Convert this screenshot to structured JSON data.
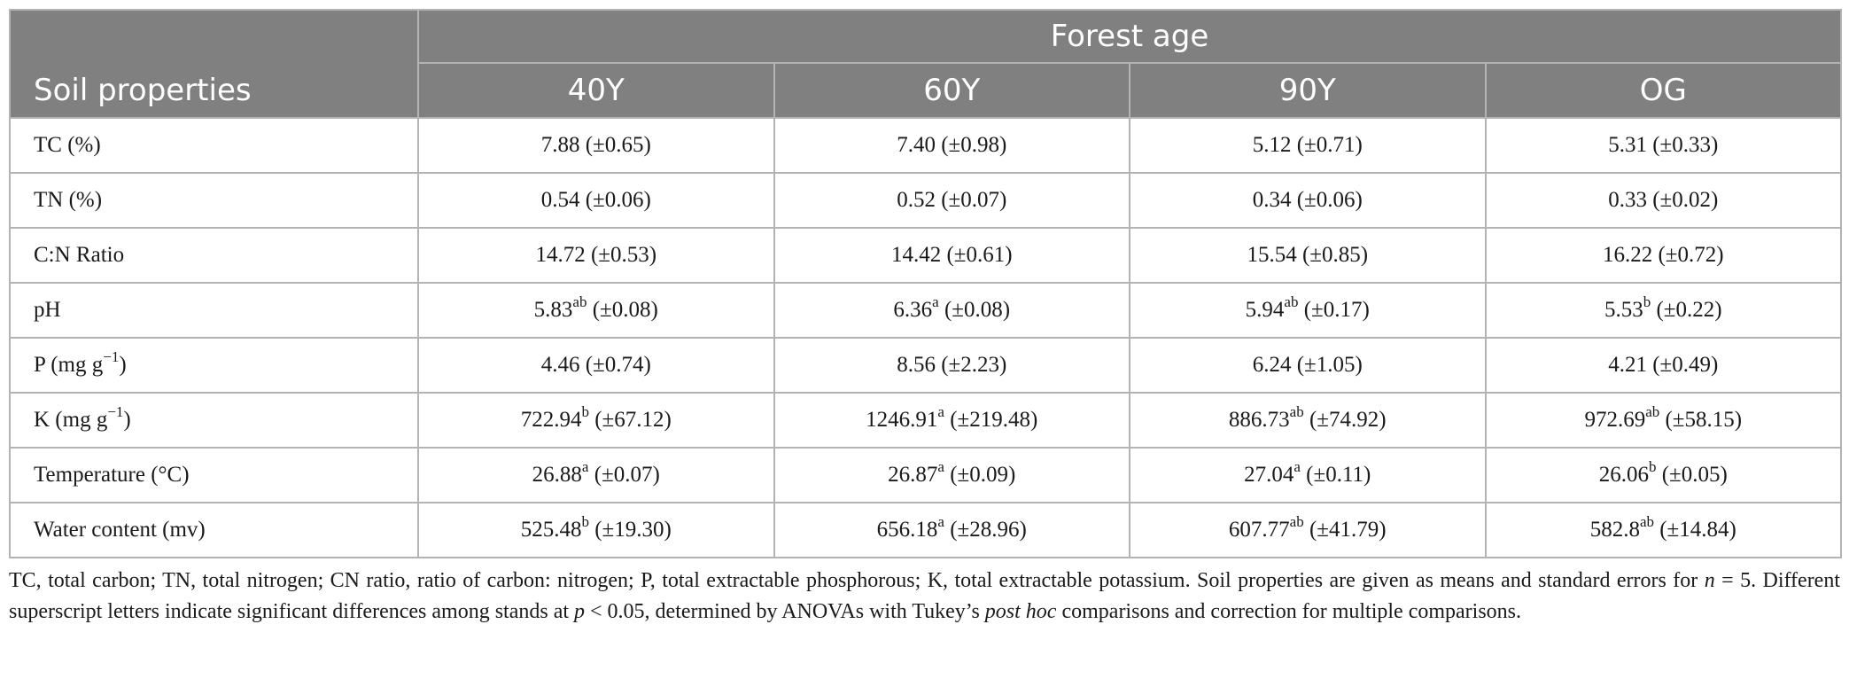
{
  "header": {
    "corner_label": "Soil properties",
    "group_label": "Forest age",
    "columns": [
      "40Y",
      "60Y",
      "90Y",
      "OG"
    ]
  },
  "rows": [
    {
      "property": "TC (%)",
      "property_sup": "",
      "property_tail": "",
      "cells": [
        {
          "value": "7.88",
          "sup": "",
          "se": "(±0.65)"
        },
        {
          "value": "7.40",
          "sup": "",
          "se": "(±0.98)"
        },
        {
          "value": "5.12",
          "sup": "",
          "se": "(±0.71)"
        },
        {
          "value": "5.31",
          "sup": "",
          "se": "(±0.33)"
        }
      ]
    },
    {
      "property": "TN (%)",
      "property_sup": "",
      "property_tail": "",
      "cells": [
        {
          "value": "0.54",
          "sup": "",
          "se": "(±0.06)"
        },
        {
          "value": "0.52",
          "sup": "",
          "se": "(±0.07)"
        },
        {
          "value": "0.34",
          "sup": "",
          "se": "(±0.06)"
        },
        {
          "value": "0.33",
          "sup": "",
          "se": "(±0.02)"
        }
      ]
    },
    {
      "property": "C:N Ratio",
      "property_sup": "",
      "property_tail": "",
      "cells": [
        {
          "value": "14.72",
          "sup": "",
          "se": "(±0.53)"
        },
        {
          "value": "14.42",
          "sup": "",
          "se": "(±0.61)"
        },
        {
          "value": "15.54",
          "sup": "",
          "se": "(±0.85)"
        },
        {
          "value": "16.22",
          "sup": "",
          "se": "(±0.72)"
        }
      ]
    },
    {
      "property": "pH",
      "property_sup": "",
      "property_tail": "",
      "cells": [
        {
          "value": "5.83",
          "sup": "ab",
          "se": "(±0.08)"
        },
        {
          "value": "6.36",
          "sup": "a",
          "se": "(±0.08)"
        },
        {
          "value": "5.94",
          "sup": "ab",
          "se": "(±0.17)"
        },
        {
          "value": "5.53",
          "sup": "b",
          "se": "(±0.22)"
        }
      ]
    },
    {
      "property": "P (mg g",
      "property_sup": "−1",
      "property_tail": ")",
      "cells": [
        {
          "value": "4.46",
          "sup": "",
          "se": "(±0.74)"
        },
        {
          "value": "8.56",
          "sup": "",
          "se": "(±2.23)"
        },
        {
          "value": "6.24",
          "sup": "",
          "se": "(±1.05)"
        },
        {
          "value": "4.21",
          "sup": "",
          "se": "(±0.49)"
        }
      ]
    },
    {
      "property": "K (mg g",
      "property_sup": "−1",
      "property_tail": ")",
      "cells": [
        {
          "value": "722.94",
          "sup": "b",
          "se": "(±67.12)"
        },
        {
          "value": "1246.91",
          "sup": "a",
          "se": "(±219.48)"
        },
        {
          "value": "886.73",
          "sup": "ab",
          "se": "(±74.92)"
        },
        {
          "value": "972.69",
          "sup": "ab",
          "se": "(±58.15)"
        }
      ]
    },
    {
      "property": "Temperature (°C)",
      "property_sup": "",
      "property_tail": "",
      "cells": [
        {
          "value": "26.88",
          "sup": "a",
          "se": "(±0.07)"
        },
        {
          "value": "26.87",
          "sup": "a",
          "se": "(±0.09)"
        },
        {
          "value": "27.04",
          "sup": "a",
          "se": "(±0.11)"
        },
        {
          "value": "26.06",
          "sup": "b",
          "se": "(±0.05)"
        }
      ]
    },
    {
      "property": "Water content (mv)",
      "property_sup": "",
      "property_tail": "",
      "cells": [
        {
          "value": "525.48",
          "sup": "b",
          "se": "(±19.30)"
        },
        {
          "value": "656.18",
          "sup": "a",
          "se": "(±28.96)"
        },
        {
          "value": "607.77",
          "sup": "ab",
          "se": "(±41.79)"
        },
        {
          "value": "582.8",
          "sup": "ab",
          "se": "(±14.84)"
        }
      ]
    }
  ],
  "footnote": {
    "part1": "TC, total carbon; TN, total nitrogen; CN ratio, ratio of carbon: nitrogen; P, total extractable phosphorous; K, total extractable potassium. Soil properties are given as means and standard errors for ",
    "n_var": "n",
    "part2": " = 5. Different superscript letters indicate significant differences among stands at ",
    "p_var": "p",
    "part3": " < 0.05, determined by ANOVAs with Tukey’s ",
    "italic": "post hoc",
    "part4": " comparisons and correction for multiple comparisons."
  },
  "colors": {
    "header_bg": "#808080",
    "header_text": "#ffffff",
    "border": "#b3b3b3"
  }
}
